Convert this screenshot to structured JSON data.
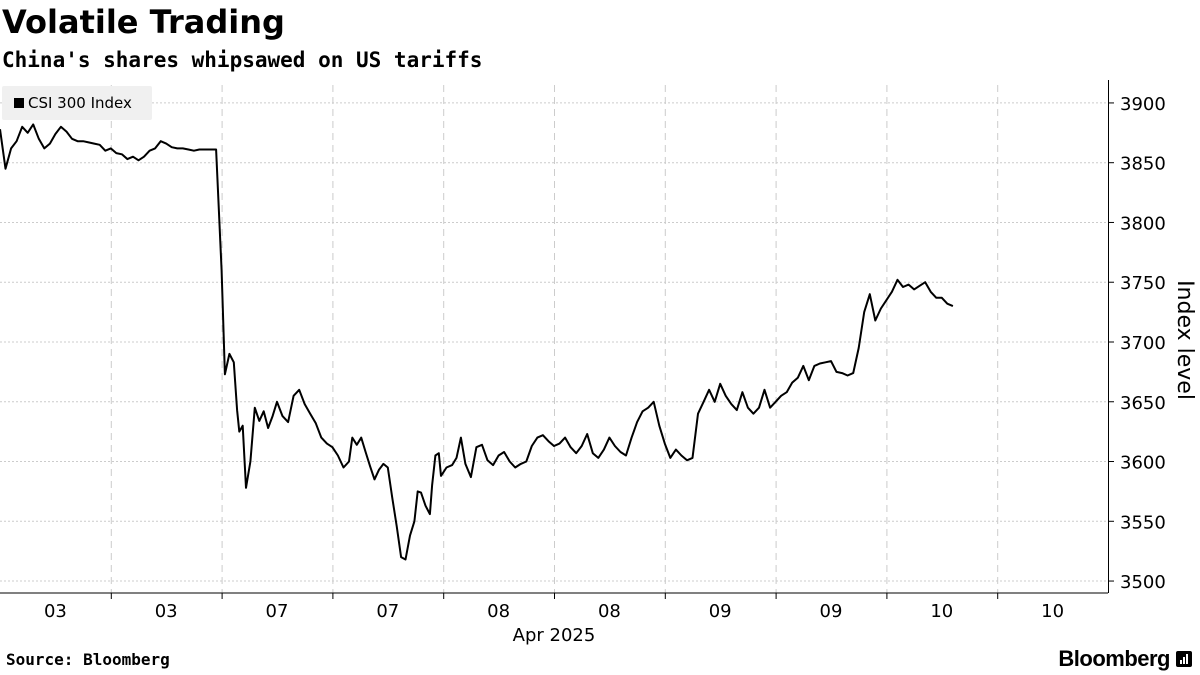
{
  "title": "Volatile Trading",
  "subtitle": "China's shares whipsawed on US tariffs",
  "source": "Source: Bloomberg",
  "brand": "Bloomberg",
  "brand_icon": "bloomberg-bars-icon",
  "colors": {
    "line": "#000000",
    "grid": "#cccccc",
    "legend_bg": "#f0f0f0"
  },
  "chart_data": {
    "type": "line",
    "title": "Volatile Trading",
    "subtitle": "China's shares whipsawed on US tariffs",
    "legend": [
      "CSI 300 Index"
    ],
    "xlabel": "Apr 2025",
    "ylabel": "Index level",
    "ylim": [
      3490,
      3915
    ],
    "yticks": [
      3500,
      3550,
      3600,
      3650,
      3700,
      3750,
      3800,
      3850,
      3900
    ],
    "x_category_labels": [
      "03",
      "03",
      "07",
      "07",
      "08",
      "08",
      "09",
      "09",
      "10",
      "10"
    ],
    "x_domain": [
      0,
      10
    ],
    "grid": true,
    "series": [
      {
        "name": "CSI 300 Index",
        "points": [
          [
            0.0,
            3878
          ],
          [
            0.05,
            3845
          ],
          [
            0.1,
            3862
          ],
          [
            0.15,
            3868
          ],
          [
            0.2,
            3880
          ],
          [
            0.25,
            3875
          ],
          [
            0.3,
            3882
          ],
          [
            0.35,
            3870
          ],
          [
            0.4,
            3862
          ],
          [
            0.45,
            3866
          ],
          [
            0.5,
            3874
          ],
          [
            0.55,
            3880
          ],
          [
            0.6,
            3876
          ],
          [
            0.65,
            3870
          ],
          [
            0.7,
            3868
          ],
          [
            0.75,
            3868
          ],
          [
            0.8,
            3867
          ],
          [
            0.85,
            3866
          ],
          [
            0.9,
            3865
          ],
          [
            0.95,
            3860
          ],
          [
            1.0,
            3862
          ],
          [
            1.05,
            3858
          ],
          [
            1.1,
            3857
          ],
          [
            1.15,
            3853
          ],
          [
            1.2,
            3855
          ],
          [
            1.25,
            3852
          ],
          [
            1.3,
            3855
          ],
          [
            1.35,
            3860
          ],
          [
            1.4,
            3862
          ],
          [
            1.45,
            3868
          ],
          [
            1.5,
            3866
          ],
          [
            1.55,
            3863
          ],
          [
            1.6,
            3862
          ],
          [
            1.65,
            3862
          ],
          [
            1.7,
            3861
          ],
          [
            1.75,
            3860
          ],
          [
            1.8,
            3861
          ],
          [
            1.85,
            3861
          ],
          [
            1.9,
            3861
          ],
          [
            1.95,
            3861
          ],
          [
            2.0,
            3760
          ],
          [
            2.03,
            3673
          ],
          [
            2.07,
            3690
          ],
          [
            2.11,
            3683
          ],
          [
            2.14,
            3643
          ],
          [
            2.16,
            3625
          ],
          [
            2.19,
            3630
          ],
          [
            2.22,
            3578
          ],
          [
            2.26,
            3600
          ],
          [
            2.3,
            3645
          ],
          [
            2.34,
            3634
          ],
          [
            2.38,
            3642
          ],
          [
            2.42,
            3628
          ],
          [
            2.46,
            3638
          ],
          [
            2.5,
            3650
          ],
          [
            2.55,
            3638
          ],
          [
            2.6,
            3633
          ],
          [
            2.65,
            3655
          ],
          [
            2.7,
            3660
          ],
          [
            2.75,
            3648
          ],
          [
            2.8,
            3640
          ],
          [
            2.85,
            3632
          ],
          [
            2.9,
            3620
          ],
          [
            2.95,
            3615
          ],
          [
            3.0,
            3612
          ],
          [
            3.05,
            3605
          ],
          [
            3.1,
            3595
          ],
          [
            3.15,
            3600
          ],
          [
            3.18,
            3620
          ],
          [
            3.22,
            3614
          ],
          [
            3.26,
            3620
          ],
          [
            3.3,
            3608
          ],
          [
            3.34,
            3596
          ],
          [
            3.38,
            3585
          ],
          [
            3.42,
            3593
          ],
          [
            3.46,
            3598
          ],
          [
            3.5,
            3595
          ],
          [
            3.54,
            3570
          ],
          [
            3.58,
            3546
          ],
          [
            3.62,
            3520
          ],
          [
            3.66,
            3518
          ],
          [
            3.7,
            3538
          ],
          [
            3.74,
            3550
          ],
          [
            3.77,
            3575
          ],
          [
            3.8,
            3574
          ],
          [
            3.84,
            3563
          ],
          [
            3.88,
            3556
          ],
          [
            3.9,
            3580
          ],
          [
            3.93,
            3605
          ],
          [
            3.96,
            3607
          ],
          [
            3.98,
            3588
          ],
          [
            4.03,
            3595
          ],
          [
            4.08,
            3597
          ],
          [
            4.12,
            3603
          ],
          [
            4.16,
            3620
          ],
          [
            4.2,
            3598
          ],
          [
            4.25,
            3587
          ],
          [
            4.3,
            3612
          ],
          [
            4.35,
            3614
          ],
          [
            4.4,
            3601
          ],
          [
            4.45,
            3597
          ],
          [
            4.5,
            3605
          ],
          [
            4.55,
            3608
          ],
          [
            4.6,
            3600
          ],
          [
            4.65,
            3595
          ],
          [
            4.7,
            3598
          ],
          [
            4.75,
            3600
          ],
          [
            4.8,
            3613
          ],
          [
            4.85,
            3620
          ],
          [
            4.9,
            3622
          ],
          [
            4.95,
            3617
          ],
          [
            5.0,
            3613
          ],
          [
            5.05,
            3615
          ],
          [
            5.1,
            3620
          ],
          [
            5.15,
            3612
          ],
          [
            5.2,
            3607
          ],
          [
            5.25,
            3613
          ],
          [
            5.3,
            3623
          ],
          [
            5.35,
            3607
          ],
          [
            5.4,
            3603
          ],
          [
            5.45,
            3610
          ],
          [
            5.5,
            3620
          ],
          [
            5.55,
            3613
          ],
          [
            5.6,
            3608
          ],
          [
            5.65,
            3605
          ],
          [
            5.7,
            3620
          ],
          [
            5.75,
            3633
          ],
          [
            5.8,
            3642
          ],
          [
            5.85,
            3645
          ],
          [
            5.9,
            3650
          ],
          [
            5.95,
            3630
          ],
          [
            6.0,
            3615
          ],
          [
            6.05,
            3603
          ],
          [
            6.1,
            3610
          ],
          [
            6.15,
            3605
          ],
          [
            6.2,
            3601
          ],
          [
            6.25,
            3603
          ],
          [
            6.3,
            3640
          ],
          [
            6.35,
            3650
          ],
          [
            6.4,
            3660
          ],
          [
            6.45,
            3650
          ],
          [
            6.5,
            3665
          ],
          [
            6.55,
            3655
          ],
          [
            6.6,
            3648
          ],
          [
            6.65,
            3643
          ],
          [
            6.7,
            3658
          ],
          [
            6.75,
            3645
          ],
          [
            6.8,
            3640
          ],
          [
            6.85,
            3645
          ],
          [
            6.9,
            3660
          ],
          [
            6.95,
            3645
          ],
          [
            7.0,
            3650
          ],
          [
            7.05,
            3655
          ],
          [
            7.1,
            3658
          ],
          [
            7.15,
            3666
          ],
          [
            7.2,
            3670
          ],
          [
            7.25,
            3680
          ],
          [
            7.3,
            3668
          ],
          [
            7.35,
            3680
          ],
          [
            7.4,
            3682
          ],
          [
            7.45,
            3683
          ],
          [
            7.5,
            3684
          ],
          [
            7.55,
            3675
          ],
          [
            7.6,
            3674
          ],
          [
            7.65,
            3672
          ],
          [
            7.7,
            3674
          ],
          [
            7.75,
            3695
          ],
          [
            7.8,
            3725
          ],
          [
            7.85,
            3740
          ],
          [
            7.9,
            3718
          ],
          [
            7.95,
            3728
          ],
          [
            8.0,
            3735
          ],
          [
            8.05,
            3742
          ],
          [
            8.1,
            3752
          ],
          [
            8.15,
            3746
          ],
          [
            8.2,
            3748
          ],
          [
            8.25,
            3744
          ],
          [
            8.3,
            3747
          ],
          [
            8.35,
            3750
          ],
          [
            8.4,
            3742
          ],
          [
            8.45,
            3737
          ],
          [
            8.5,
            3737
          ],
          [
            8.55,
            3732
          ],
          [
            8.6,
            3730
          ]
        ]
      }
    ]
  }
}
